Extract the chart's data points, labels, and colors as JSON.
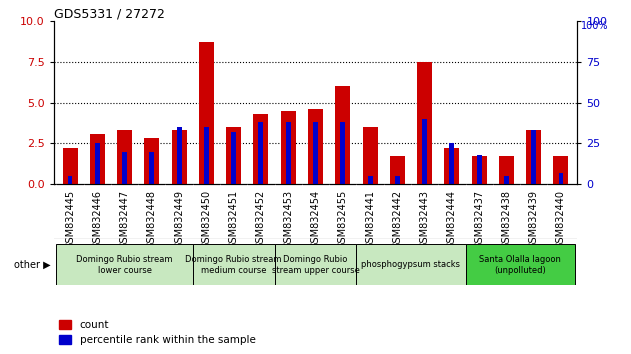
{
  "title": "GDS5331 / 27272",
  "samples": [
    "GSM832445",
    "GSM832446",
    "GSM832447",
    "GSM832448",
    "GSM832449",
    "GSM832450",
    "GSM832451",
    "GSM832452",
    "GSM832453",
    "GSM832454",
    "GSM832455",
    "GSM832441",
    "GSM832442",
    "GSM832443",
    "GSM832444",
    "GSM832437",
    "GSM832438",
    "GSM832439",
    "GSM832440"
  ],
  "count_values": [
    2.2,
    3.05,
    3.3,
    2.8,
    3.3,
    8.7,
    3.5,
    4.3,
    4.5,
    4.6,
    6.0,
    3.5,
    1.75,
    7.5,
    2.2,
    1.75,
    1.7,
    3.35,
    1.7
  ],
  "percentile_values": [
    5,
    25,
    20,
    20,
    35,
    35,
    32,
    38,
    38,
    38,
    38,
    5,
    5,
    40,
    25,
    18,
    5,
    33,
    7
  ],
  "bar_color": "#cc0000",
  "percentile_color": "#0000cc",
  "ylim_left": [
    0,
    10
  ],
  "ylim_right": [
    0,
    100
  ],
  "yticks_left": [
    0,
    2.5,
    5.0,
    7.5,
    10
  ],
  "yticks_right": [
    0,
    25,
    50,
    75,
    100
  ],
  "groups": [
    {
      "label": "Domingo Rubio stream\nlower course",
      "start": 0,
      "end": 4
    },
    {
      "label": "Domingo Rubio stream\nmedium course",
      "start": 5,
      "end": 7
    },
    {
      "label": "Domingo Rubio\nstream upper course",
      "start": 8,
      "end": 10
    },
    {
      "label": "phosphogypsum stacks",
      "start": 11,
      "end": 14
    },
    {
      "label": "Santa Olalla lagoon\n(unpolluted)",
      "start": 15,
      "end": 18
    }
  ],
  "bar_width": 0.55,
  "percentile_bar_width": 0.18,
  "group_label_fontsize": 6.0,
  "tick_label_fontsize": 7,
  "legend_count_label": "count",
  "legend_percentile_label": "percentile rank within the sample",
  "gray_bg": "#d8d8d8",
  "light_green": "#c8e8c0",
  "bright_green": "#44cc44"
}
